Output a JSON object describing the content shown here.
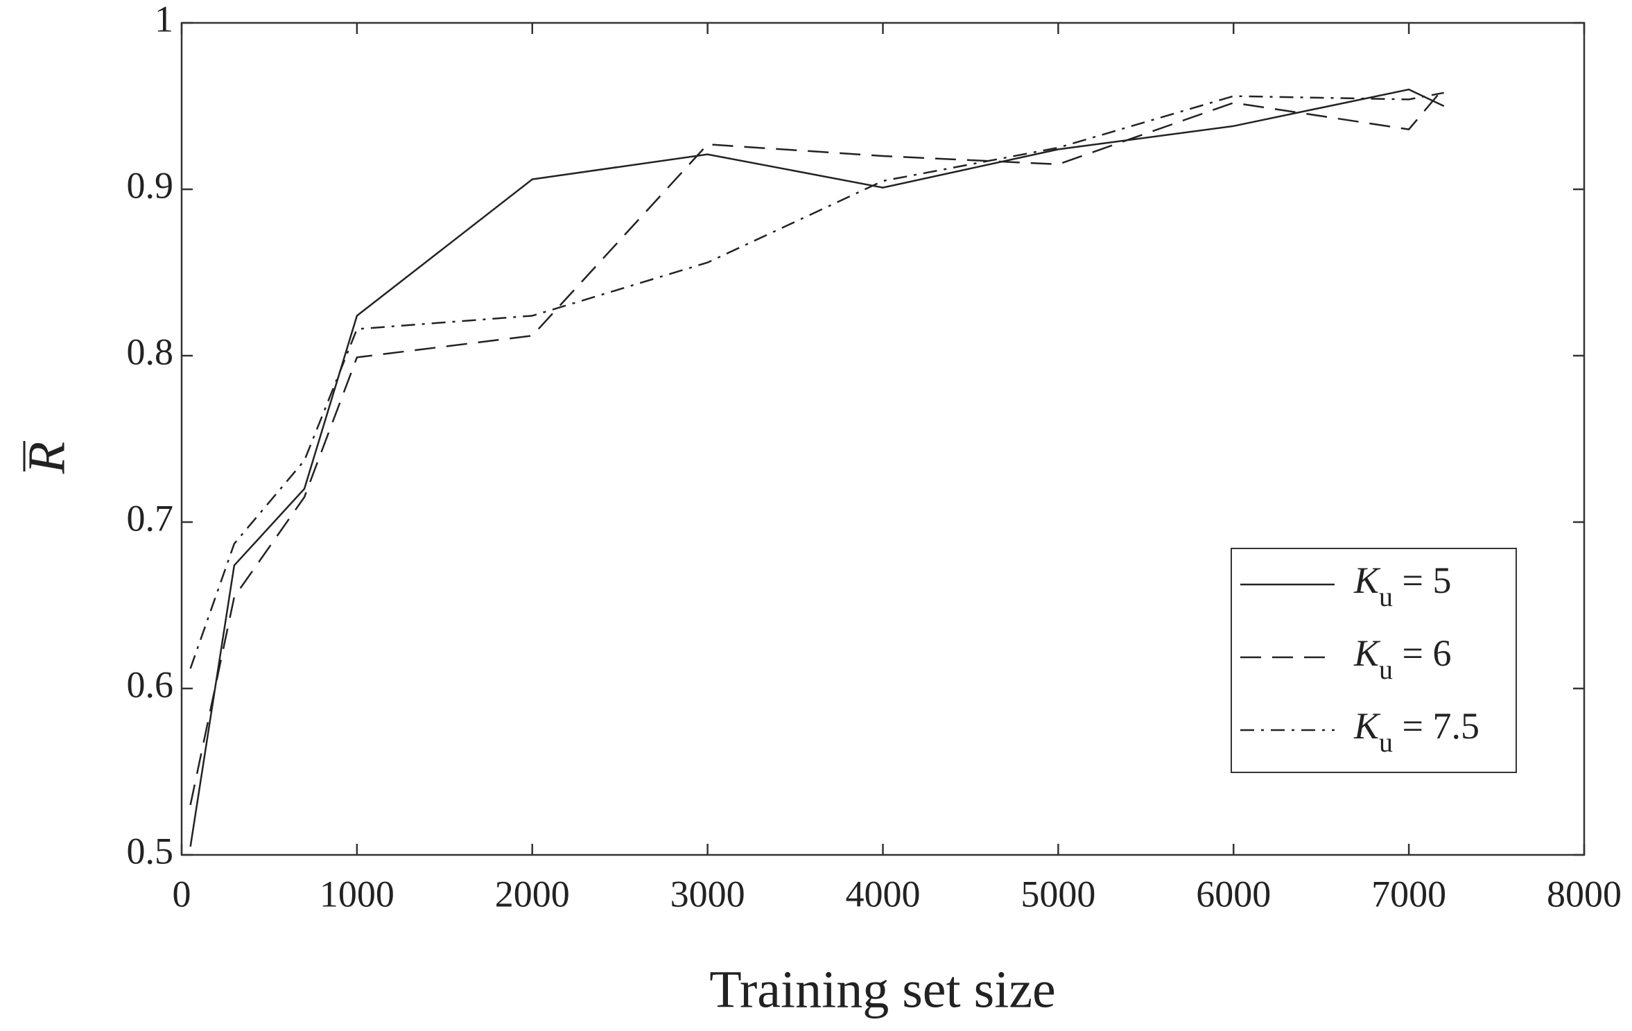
{
  "chart_data": {
    "type": "line",
    "xlabel": "Training set size",
    "ylabel": "R",
    "x": [
      50,
      300,
      700,
      1000,
      2000,
      3000,
      4000,
      5000,
      6000,
      7000,
      7200
    ],
    "series": [
      {
        "name": "Ku = 5",
        "color": "#222222",
        "style": "solid",
        "values": [
          0.505,
          0.674,
          0.72,
          0.824,
          0.906,
          0.921,
          0.901,
          0.924,
          0.938,
          0.96,
          0.95
        ]
      },
      {
        "name": "Ku = 6",
        "color": "#222222",
        "style": "dashed",
        "values": [
          0.53,
          0.655,
          0.715,
          0.799,
          0.812,
          0.927,
          0.92,
          0.915,
          0.952,
          0.936,
          0.961
        ]
      },
      {
        "name": "Ku = 7.5",
        "color": "#222222",
        "style": "dashdot",
        "values": [
          0.612,
          0.687,
          0.737,
          0.816,
          0.824,
          0.856,
          0.905,
          0.925,
          0.956,
          0.954,
          0.958
        ]
      }
    ],
    "xlim": [
      0,
      8000
    ],
    "xticks": [
      0,
      1000,
      2000,
      3000,
      4000,
      5000,
      6000,
      7000,
      8000
    ],
    "ylim": [
      0.5,
      1
    ],
    "yticks": [
      0.5,
      0.6,
      0.7,
      0.8,
      0.9,
      1
    ],
    "grid": false,
    "legend": "lower right"
  }
}
